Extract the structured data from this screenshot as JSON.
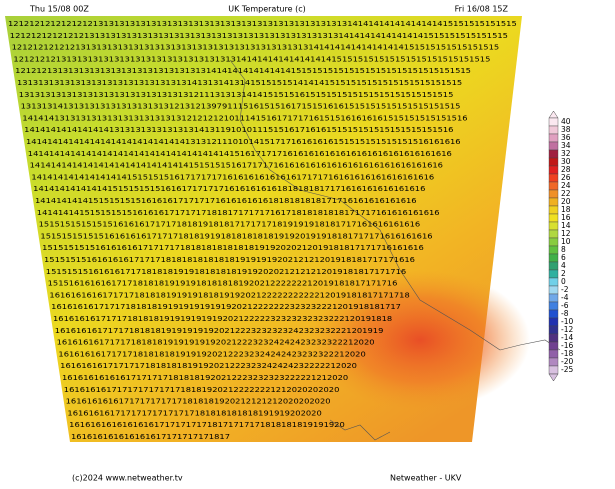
{
  "header": {
    "left": "Thu 15/08 00Z",
    "title": "UK Temperature (c)",
    "right": "Fri 16/08 15Z"
  },
  "footer": {
    "left": "(c)2024 www.netweather.tv",
    "right": "Netweather - UKV"
  },
  "grid": {
    "rows": [
      "121212121212121213131313131313131313131313131313131313131313131314141414141414141415151515151515",
      "1212121212121213131313131313131313131313131313131313131313131314141414141414141515151515151515",
      "12121212121213131313131313131313131313131313131313131313141414141414141414151515151515151515",
      "121212121313131313131313131313131313131313141414141414141414151515151515151515151515151515",
      "12121213131313131313131313131313131314141414141414141515151515151515151515151515151515",
      "131313131313131313131313131313131413131413141515151514141415151515151515151515151515",
      "1313131313131313131313131313131312111313131414151515161515151515151515151515151515",
      "13131314131313131313131313131213121397911151615151617151516161515151515151515151515",
      "141414131313131313131313131313121212121011141516171717161515161616161515151515151516",
      "141414141414141413131313131313131413119101011151516171616151515151515151515151516",
      "1414141414141414141414141414141313121110101415171716161616151515151515151516161616",
      "14141414141414141414141414141414141414151617171716161616161616161616161616161616",
      "141414141414141414141414141414151515151617171716161616161616161616161616161616",
      "1414141414141414141515151516171717171616161616161617171716161616161616161616",
      "14141414141414151515151516161717171716161616161818181817171616161616161616",
      "141414141415151515151616161717171716161616161818181818171716161616161616",
      "1414141415151515151616161717171718181717171716171818181818171717161616161616",
      "151515151515151616161717171818191818171717171819191918181717161616161616",
      "15151515151516161616171717181819191818181818191920191918181717171616161616",
      "151515151516161616171717171818181818181819192020212019181817171716161616",
      "1515151516161616171717181818181818181919191920212121201918181717171616",
      "15151515161616171718181819191818181819192020212121212019181817171716",
      "151516161616171718181819191918181818192021222222212019181817171716",
      "16161616161717171818181919191818191920212222222222212019181817171718",
      "161616161717171818181919191919191920212222222323232221201918181717",
      "1616161617171718181819191919191920212222232323232323222120191818",
      "16161616171717181818191919191920212223232323242323232221201919",
      "161616161717171818181919191919202122232324242423232322212020",
      "1616161617171718181818191919202122232324242423232322212020",
      "16161616171717171818181819192021222323242424232222212020",
      "161616161616171717171818181920212223232323222221212020",
      "1616161617171717171717181819202122222221212020202020",
      "16161616161717171717171818181920212121212020202020",
      "161616161717171717171717181818181818191919202020",
      "1616161616161616171717171718171717171818181819191920",
      "161616161616161617171717171817"
    ]
  },
  "legend": {
    "items": [
      {
        "label": "40",
        "color": "#fbe8f0"
      },
      {
        "label": "38",
        "color": "#f0c8d8"
      },
      {
        "label": "36",
        "color": "#e0a0c0"
      },
      {
        "label": "34",
        "color": "#c070a0"
      },
      {
        "label": "32",
        "color": "#a02040"
      },
      {
        "label": "30",
        "color": "#c01818"
      },
      {
        "label": "28",
        "color": "#e02020"
      },
      {
        "label": "26",
        "color": "#f04020"
      },
      {
        "label": "24",
        "color": "#f06828"
      },
      {
        "label": "22",
        "color": "#f09028"
      },
      {
        "label": "20",
        "color": "#f0b020"
      },
      {
        "label": "18",
        "color": "#f0d020"
      },
      {
        "label": "16",
        "color": "#f0e020"
      },
      {
        "label": "14",
        "color": "#d8e030"
      },
      {
        "label": "12",
        "color": "#b0d840"
      },
      {
        "label": "10",
        "color": "#88cc40"
      },
      {
        "label": "8",
        "color": "#60c040"
      },
      {
        "label": "6",
        "color": "#40b048"
      },
      {
        "label": "4",
        "color": "#30a070"
      },
      {
        "label": "2",
        "color": "#30b0a0"
      },
      {
        "label": "0",
        "color": "#70d0e8"
      },
      {
        "label": "-2",
        "color": "#a0d8f0"
      },
      {
        "label": "-4",
        "color": "#70a8e8"
      },
      {
        "label": "-6",
        "color": "#4080e0"
      },
      {
        "label": "-8",
        "color": "#2050d0"
      },
      {
        "label": "-10",
        "color": "#2030b0"
      },
      {
        "label": "-12",
        "color": "#303090"
      },
      {
        "label": "-14",
        "color": "#503080"
      },
      {
        "label": "-16",
        "color": "#704090"
      },
      {
        "label": "-18",
        "color": "#9060a8"
      },
      {
        "label": "-20",
        "color": "#b088c0"
      },
      {
        "label": "-25",
        "color": "#d8c0e0"
      }
    ]
  }
}
